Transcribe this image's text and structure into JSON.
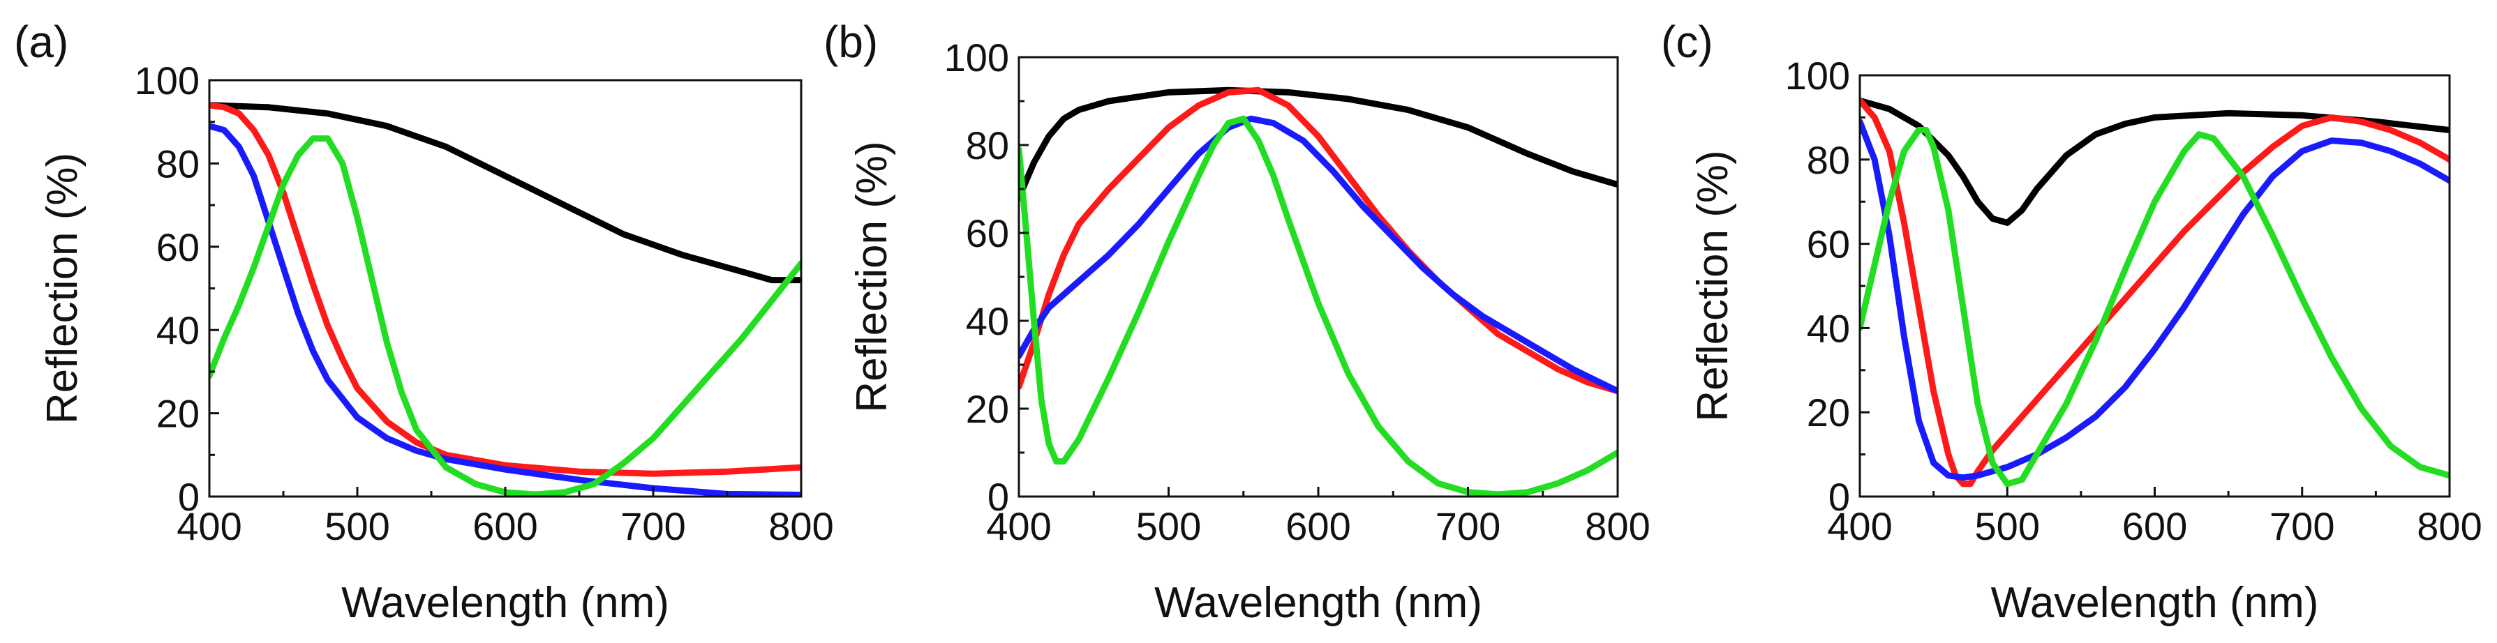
{
  "chart_data": [
    {
      "type": "line",
      "panel_label": "(a)",
      "xlabel": "Wavelength (nm)",
      "ylabel": "Reflection (%)",
      "xlim": [
        400,
        800
      ],
      "ylim": [
        0,
        100
      ],
      "xticks": [
        400,
        500,
        600,
        700,
        800
      ],
      "yticks": [
        0,
        20,
        40,
        60,
        80,
        100
      ],
      "series": [
        {
          "name": "black",
          "color": "#000000",
          "points": [
            [
              400,
              94
            ],
            [
              440,
              93.5
            ],
            [
              480,
              92
            ],
            [
              520,
              89
            ],
            [
              560,
              84
            ],
            [
              600,
              77
            ],
            [
              640,
              70
            ],
            [
              680,
              63
            ],
            [
              720,
              58
            ],
            [
              760,
              54
            ],
            [
              780,
              52
            ],
            [
              800,
              52
            ]
          ]
        },
        {
          "name": "red",
          "color": "#ff1a1a",
          "points": [
            [
              400,
              94
            ],
            [
              410,
              93.5
            ],
            [
              420,
              92
            ],
            [
              430,
              88
            ],
            [
              440,
              82
            ],
            [
              450,
              73
            ],
            [
              460,
              62
            ],
            [
              470,
              51
            ],
            [
              480,
              41
            ],
            [
              490,
              33
            ],
            [
              500,
              26
            ],
            [
              520,
              18
            ],
            [
              540,
              13
            ],
            [
              560,
              10
            ],
            [
              600,
              7.5
            ],
            [
              650,
              6
            ],
            [
              700,
              5.5
            ],
            [
              750,
              6
            ],
            [
              800,
              7
            ]
          ]
        },
        {
          "name": "blue",
          "color": "#1a1aff",
          "points": [
            [
              400,
              89
            ],
            [
              410,
              88
            ],
            [
              420,
              84
            ],
            [
              430,
              77
            ],
            [
              440,
              66
            ],
            [
              450,
              55
            ],
            [
              460,
              44
            ],
            [
              470,
              35
            ],
            [
              480,
              28
            ],
            [
              500,
              19
            ],
            [
              520,
              14
            ],
            [
              540,
              11
            ],
            [
              560,
              9
            ],
            [
              600,
              6.5
            ],
            [
              650,
              4
            ],
            [
              700,
              2
            ],
            [
              750,
              0.6
            ],
            [
              800,
              0.4
            ]
          ]
        },
        {
          "name": "green",
          "color": "#22dd22",
          "points": [
            [
              400,
              29
            ],
            [
              410,
              38
            ],
            [
              420,
              46
            ],
            [
              430,
              55
            ],
            [
              440,
              65
            ],
            [
              450,
              75
            ],
            [
              460,
              82
            ],
            [
              470,
              86
            ],
            [
              480,
              86
            ],
            [
              490,
              80
            ],
            [
              500,
              67
            ],
            [
              510,
              52
            ],
            [
              520,
              37
            ],
            [
              530,
              25
            ],
            [
              540,
              16
            ],
            [
              560,
              7
            ],
            [
              580,
              3
            ],
            [
              600,
              1
            ],
            [
              620,
              0.5
            ],
            [
              640,
              1
            ],
            [
              660,
              3
            ],
            [
              680,
              8
            ],
            [
              700,
              14
            ],
            [
              720,
              22
            ],
            [
              740,
              30
            ],
            [
              760,
              38
            ],
            [
              780,
              47
            ],
            [
              800,
              56
            ]
          ]
        }
      ]
    },
    {
      "type": "line",
      "panel_label": "(b)",
      "xlabel": "Wavelength (nm)",
      "ylabel": "Reflection (%)",
      "xlim": [
        400,
        800
      ],
      "ylim": [
        0,
        100
      ],
      "xticks": [
        400,
        500,
        600,
        700,
        800
      ],
      "yticks": [
        0,
        20,
        40,
        60,
        80,
        100
      ],
      "series": [
        {
          "name": "black",
          "color": "#000000",
          "points": [
            [
              400,
              68
            ],
            [
              410,
              76
            ],
            [
              420,
              82
            ],
            [
              430,
              86
            ],
            [
              440,
              88
            ],
            [
              460,
              90
            ],
            [
              500,
              92
            ],
            [
              540,
              92.5
            ],
            [
              580,
              92
            ],
            [
              620,
              90.5
            ],
            [
              660,
              88
            ],
            [
              700,
              84
            ],
            [
              740,
              78
            ],
            [
              770,
              74
            ],
            [
              800,
              71
            ]
          ]
        },
        {
          "name": "red",
          "color": "#ff1a1a",
          "points": [
            [
              400,
              25
            ],
            [
              410,
              35
            ],
            [
              420,
              46
            ],
            [
              430,
              55
            ],
            [
              440,
              62
            ],
            [
              460,
              70
            ],
            [
              480,
              77
            ],
            [
              500,
              84
            ],
            [
              520,
              89
            ],
            [
              540,
              92
            ],
            [
              560,
              92.5
            ],
            [
              580,
              89
            ],
            [
              600,
              82
            ],
            [
              620,
              73
            ],
            [
              640,
              64
            ],
            [
              660,
              56
            ],
            [
              680,
              49
            ],
            [
              700,
              43
            ],
            [
              720,
              37
            ],
            [
              740,
              33
            ],
            [
              760,
              29
            ],
            [
              780,
              26
            ],
            [
              800,
              24
            ]
          ]
        },
        {
          "name": "blue",
          "color": "#1a1aff",
          "points": [
            [
              400,
              32
            ],
            [
              410,
              38
            ],
            [
              420,
              43
            ],
            [
              440,
              49
            ],
            [
              460,
              55
            ],
            [
              480,
              62
            ],
            [
              500,
              70
            ],
            [
              520,
              78
            ],
            [
              540,
              84
            ],
            [
              555,
              86
            ],
            [
              570,
              85
            ],
            [
              590,
              81
            ],
            [
              610,
              74
            ],
            [
              630,
              66
            ],
            [
              650,
              59
            ],
            [
              670,
              52
            ],
            [
              690,
              46
            ],
            [
              710,
              41
            ],
            [
              730,
              37
            ],
            [
              750,
              33
            ],
            [
              770,
              29
            ],
            [
              800,
              24
            ]
          ]
        },
        {
          "name": "green",
          "color": "#22dd22",
          "points": [
            [
              400,
              79
            ],
            [
              405,
              60
            ],
            [
              410,
              40
            ],
            [
              415,
              22
            ],
            [
              420,
              12
            ],
            [
              425,
              8
            ],
            [
              430,
              8
            ],
            [
              440,
              13
            ],
            [
              460,
              27
            ],
            [
              480,
              42
            ],
            [
              500,
              58
            ],
            [
              520,
              73
            ],
            [
              530,
              80
            ],
            [
              540,
              85
            ],
            [
              550,
              86
            ],
            [
              560,
              81
            ],
            [
              570,
              73
            ],
            [
              580,
              63
            ],
            [
              600,
              44
            ],
            [
              620,
              28
            ],
            [
              640,
              16
            ],
            [
              660,
              8
            ],
            [
              680,
              3
            ],
            [
              700,
              1
            ],
            [
              720,
              0.5
            ],
            [
              740,
              1
            ],
            [
              760,
              3
            ],
            [
              780,
              6
            ],
            [
              800,
              10
            ]
          ]
        }
      ]
    },
    {
      "type": "line",
      "panel_label": "(c)",
      "xlabel": "Wavelength (nm)",
      "ylabel": "Reflection (%)",
      "xlim": [
        400,
        800
      ],
      "ylim": [
        0,
        100
      ],
      "xticks": [
        400,
        500,
        600,
        700,
        800
      ],
      "yticks": [
        0,
        20,
        40,
        60,
        80,
        100
      ],
      "series": [
        {
          "name": "black",
          "color": "#000000",
          "points": [
            [
              400,
              94
            ],
            [
              420,
              92
            ],
            [
              440,
              88
            ],
            [
              460,
              81
            ],
            [
              470,
              76
            ],
            [
              480,
              70
            ],
            [
              490,
              66
            ],
            [
              500,
              65
            ],
            [
              510,
              68
            ],
            [
              520,
              73
            ],
            [
              540,
              81
            ],
            [
              560,
              86
            ],
            [
              580,
              88.5
            ],
            [
              600,
              90
            ],
            [
              650,
              91
            ],
            [
              700,
              90.5
            ],
            [
              750,
              89
            ],
            [
              800,
              87
            ]
          ]
        },
        {
          "name": "red",
          "color": "#ff1a1a",
          "points": [
            [
              400,
              94
            ],
            [
              410,
              90
            ],
            [
              420,
              82
            ],
            [
              430,
              65
            ],
            [
              440,
              45
            ],
            [
              450,
              25
            ],
            [
              460,
              10
            ],
            [
              465,
              5
            ],
            [
              470,
              3
            ],
            [
              475,
              3
            ],
            [
              480,
              6
            ],
            [
              490,
              11
            ],
            [
              500,
              15
            ],
            [
              520,
              23
            ],
            [
              540,
              31
            ],
            [
              560,
              39
            ],
            [
              580,
              47
            ],
            [
              600,
              55
            ],
            [
              620,
              63
            ],
            [
              640,
              70
            ],
            [
              660,
              77
            ],
            [
              680,
              83
            ],
            [
              700,
              88
            ],
            [
              720,
              90
            ],
            [
              740,
              89
            ],
            [
              760,
              87
            ],
            [
              780,
              84
            ],
            [
              800,
              80
            ]
          ]
        },
        {
          "name": "blue",
          "color": "#1a1aff",
          "points": [
            [
              400,
              89
            ],
            [
              410,
              80
            ],
            [
              420,
              62
            ],
            [
              430,
              38
            ],
            [
              440,
              18
            ],
            [
              450,
              8
            ],
            [
              460,
              5
            ],
            [
              470,
              4.5
            ],
            [
              480,
              5
            ],
            [
              500,
              7
            ],
            [
              520,
              10
            ],
            [
              540,
              14
            ],
            [
              560,
              19
            ],
            [
              580,
              26
            ],
            [
              600,
              35
            ],
            [
              620,
              45
            ],
            [
              640,
              56
            ],
            [
              660,
              67
            ],
            [
              680,
              76
            ],
            [
              700,
              82
            ],
            [
              720,
              84.5
            ],
            [
              740,
              84
            ],
            [
              760,
              82
            ],
            [
              780,
              79
            ],
            [
              800,
              75
            ]
          ]
        },
        {
          "name": "green",
          "color": "#22dd22",
          "points": [
            [
              400,
              40
            ],
            [
              410,
              55
            ],
            [
              420,
              70
            ],
            [
              430,
              82
            ],
            [
              440,
              87
            ],
            [
              445,
              87
            ],
            [
              450,
              83
            ],
            [
              460,
              68
            ],
            [
              470,
              45
            ],
            [
              480,
              22
            ],
            [
              490,
              8
            ],
            [
              500,
              3
            ],
            [
              510,
              4
            ],
            [
              520,
              10
            ],
            [
              540,
              22
            ],
            [
              560,
              37
            ],
            [
              580,
              54
            ],
            [
              600,
              70
            ],
            [
              620,
              82
            ],
            [
              630,
              86
            ],
            [
              640,
              85
            ],
            [
              660,
              76
            ],
            [
              680,
              62
            ],
            [
              700,
              47
            ],
            [
              720,
              33
            ],
            [
              740,
              21
            ],
            [
              760,
              12
            ],
            [
              780,
              7
            ],
            [
              800,
              5
            ]
          ]
        }
      ]
    }
  ]
}
